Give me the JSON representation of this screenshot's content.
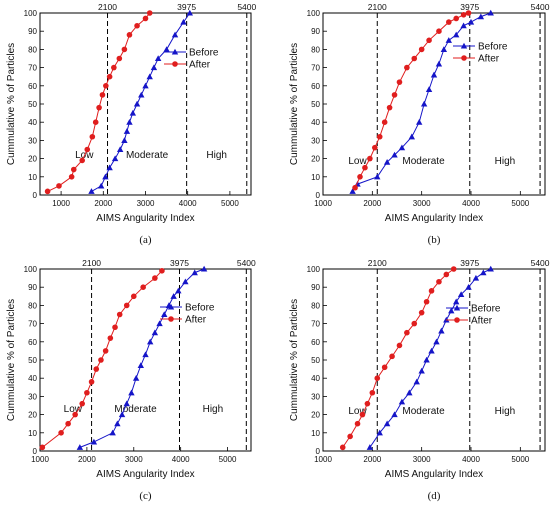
{
  "chart_data": [
    {
      "panel_label": "(a)",
      "type": "line",
      "xlabel": "AIMS Angularity  Index",
      "ylabel": "Cummulative % of  Particles",
      "xlim": [
        500,
        5500
      ],
      "ylim": [
        0,
        100
      ],
      "xticks": [
        "1000",
        "2000",
        "3000",
        "4000",
        "5000"
      ],
      "yticks": [
        "0",
        "10",
        "20",
        "30",
        "40",
        "50",
        "60",
        "70",
        "80",
        "90",
        "100"
      ],
      "thresholds": [
        2100,
        3975,
        5400
      ],
      "threshold_labels": [
        "2100",
        "3975",
        "5400"
      ],
      "zones": [
        "Low",
        "Moderate",
        "High"
      ],
      "legend_position": "top-right",
      "series": [
        {
          "name": "Before",
          "marker": "triangle",
          "color": "#1515c8",
          "x": [
            1720,
            1950,
            2050,
            2150,
            2280,
            2400,
            2500,
            2560,
            2620,
            2700,
            2800,
            2900,
            3000,
            3100,
            3200,
            3300,
            3500,
            3700,
            3900,
            4050
          ],
          "y": [
            2,
            5,
            10,
            15,
            20,
            25,
            30,
            35,
            40,
            45,
            50,
            55,
            60,
            65,
            70,
            75,
            80,
            88,
            95,
            100
          ]
        },
        {
          "name": "After",
          "marker": "circle",
          "color": "#e01e1e",
          "x": [
            680,
            950,
            1250,
            1300,
            1500,
            1620,
            1740,
            1820,
            1900,
            1980,
            2060,
            2150,
            2250,
            2380,
            2500,
            2620,
            2800,
            3000,
            3100
          ],
          "y": [
            2,
            5,
            10,
            14,
            19,
            25,
            32,
            40,
            48,
            55,
            60,
            65,
            70,
            75,
            80,
            88,
            93,
            97,
            100
          ]
        }
      ]
    },
    {
      "panel_label": "(b)",
      "type": "line",
      "xlabel": "AIMS Angularity Index",
      "ylabel": "Cummulative % of Particles",
      "xlim": [
        1000,
        5500
      ],
      "ylim": [
        0,
        100
      ],
      "xticks": [
        "1000",
        "2000",
        "3000",
        "4000",
        "5000"
      ],
      "yticks": [
        "0",
        "10",
        "20",
        "30",
        "40",
        "50",
        "60",
        "70",
        "80",
        "90",
        "100"
      ],
      "thresholds": [
        2100,
        3975,
        5400
      ],
      "threshold_labels": [
        "2100",
        "3975",
        "5400"
      ],
      "zones": [
        "Low",
        "Moderate",
        "High"
      ],
      "legend_position": "top-right",
      "series": [
        {
          "name": "Before",
          "marker": "triangle",
          "color": "#1515c8",
          "x": [
            1600,
            1700,
            2100,
            2300,
            2450,
            2600,
            2800,
            2950,
            3050,
            3150,
            3250,
            3350,
            3450,
            3550,
            3700,
            3850,
            4000,
            4200,
            4400
          ],
          "y": [
            2,
            6,
            10,
            18,
            22,
            26,
            32,
            40,
            50,
            58,
            66,
            72,
            80,
            85,
            88,
            93,
            95,
            98,
            100
          ]
        },
        {
          "name": "After",
          "marker": "circle",
          "color": "#e01e1e",
          "x": [
            1650,
            1750,
            1850,
            1950,
            2050,
            2150,
            2250,
            2350,
            2450,
            2550,
            2700,
            2850,
            3000,
            3150,
            3350,
            3550,
            3700,
            3850,
            3950
          ],
          "y": [
            4,
            10,
            15,
            20,
            26,
            32,
            40,
            48,
            55,
            62,
            70,
            75,
            80,
            85,
            90,
            95,
            97,
            99,
            100
          ]
        }
      ]
    },
    {
      "panel_label": "(c)",
      "type": "line",
      "xlabel": "AIMS Angularity  Index",
      "ylabel": "Cummulative % of  Particles",
      "xlim": [
        1000,
        5500
      ],
      "ylim": [
        0,
        100
      ],
      "xticks": [
        "1000",
        "2000",
        "3000",
        "4000",
        "5000"
      ],
      "yticks": [
        "0",
        "10",
        "20",
        "30",
        "40",
        "50",
        "60",
        "70",
        "80",
        "90",
        "100"
      ],
      "thresholds": [
        2100,
        3975,
        5400
      ],
      "threshold_labels": [
        "2100",
        "3975",
        "5400"
      ],
      "zones": [
        "Low",
        "Moderate",
        "High"
      ],
      "legend_position": "top-right",
      "series": [
        {
          "name": "Before",
          "marker": "triangle",
          "color": "#1515c8",
          "x": [
            1850,
            2150,
            2550,
            2650,
            2750,
            2850,
            2950,
            3050,
            3150,
            3250,
            3350,
            3450,
            3550,
            3650,
            3750,
            3850,
            3950,
            4100,
            4300,
            4500
          ],
          "y": [
            2,
            5,
            10,
            15,
            20,
            26,
            32,
            40,
            47,
            53,
            60,
            65,
            70,
            75,
            80,
            85,
            88,
            93,
            98,
            100
          ]
        },
        {
          "name": "After",
          "marker": "circle",
          "color": "#e01e1e",
          "x": [
            1050,
            1450,
            1600,
            1750,
            1900,
            2000,
            2100,
            2200,
            2300,
            2400,
            2500,
            2600,
            2700,
            2850,
            3000,
            3200,
            3450,
            3600
          ],
          "y": [
            2,
            10,
            15,
            20,
            26,
            32,
            38,
            45,
            50,
            55,
            62,
            68,
            75,
            80,
            85,
            90,
            95,
            99
          ]
        }
      ]
    },
    {
      "panel_label": "(d)",
      "type": "line",
      "xlabel": "AIMS Angularity  Index",
      "ylabel": "Cummulative % of  Particles",
      "xlim": [
        1000,
        5500
      ],
      "ylim": [
        0,
        100
      ],
      "xticks": [
        "1000",
        "2000",
        "3000",
        "4000",
        "5000"
      ],
      "yticks": [
        "0",
        "10",
        "20",
        "30",
        "40",
        "50",
        "60",
        "70",
        "80",
        "90",
        "100"
      ],
      "thresholds": [
        2100,
        3975,
        5400
      ],
      "threshold_labels": [
        "2100",
        "3975",
        "5400"
      ],
      "zones": [
        "Low",
        "Moderate",
        "High"
      ],
      "legend_position": "top-right",
      "series": [
        {
          "name": "Before",
          "marker": "triangle",
          "color": "#1515c8",
          "x": [
            1950,
            2150,
            2300,
            2450,
            2600,
            2750,
            2900,
            3000,
            3100,
            3200,
            3300,
            3400,
            3500,
            3600,
            3700,
            3800,
            3950,
            4100,
            4250,
            4400
          ],
          "y": [
            2,
            10,
            15,
            20,
            27,
            32,
            38,
            44,
            50,
            55,
            60,
            66,
            72,
            77,
            82,
            86,
            90,
            95,
            98,
            100
          ]
        },
        {
          "name": "After",
          "marker": "circle",
          "color": "#e01e1e",
          "x": [
            1400,
            1550,
            1700,
            1800,
            1900,
            2000,
            2100,
            2250,
            2400,
            2550,
            2700,
            2850,
            3000,
            3100,
            3200,
            3350,
            3500,
            3650
          ],
          "y": [
            2,
            8,
            15,
            20,
            26,
            32,
            40,
            46,
            52,
            58,
            65,
            70,
            76,
            82,
            88,
            93,
            97,
            100
          ]
        }
      ]
    }
  ]
}
